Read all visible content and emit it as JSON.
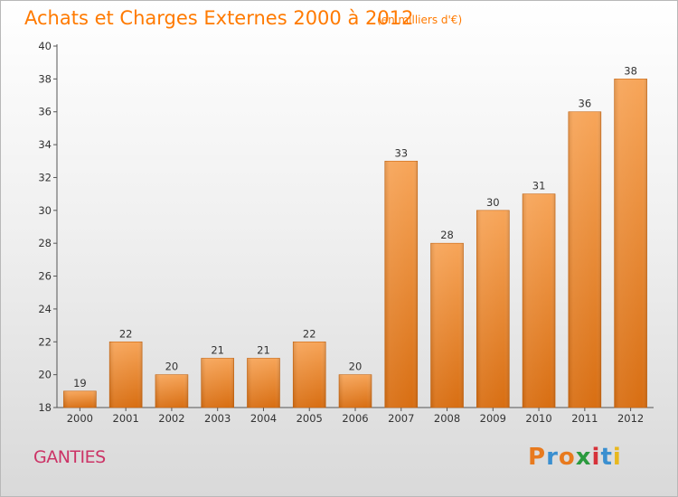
{
  "chart_data": {
    "type": "bar",
    "title": "Achats et Charges Externes 2000 à 2012",
    "subtitle": "(en milliers d'€)",
    "categories": [
      "2000",
      "2001",
      "2002",
      "2003",
      "2004",
      "2005",
      "2006",
      "2007",
      "2008",
      "2009",
      "2010",
      "2011",
      "2012"
    ],
    "values": [
      19,
      22,
      20,
      21,
      21,
      22,
      20,
      33,
      28,
      30,
      31,
      36,
      38
    ],
    "ylim": [
      18,
      40
    ],
    "yticks": [
      18,
      20,
      22,
      24,
      26,
      28,
      30,
      32,
      34,
      36,
      38,
      40
    ],
    "xlabel": "",
    "ylabel": "",
    "grid": false,
    "bar_color": "#f0892c"
  },
  "footer": {
    "place": "GANTIES",
    "brand_letters": [
      "P",
      "r",
      "o",
      "x",
      "i",
      "t",
      "i"
    ],
    "brand_colors": [
      "#e87a1e",
      "#3a8fd0",
      "#e87a1e",
      "#2b9a3e",
      "#d6323a",
      "#3a8fd0",
      "#e8b81e"
    ]
  }
}
